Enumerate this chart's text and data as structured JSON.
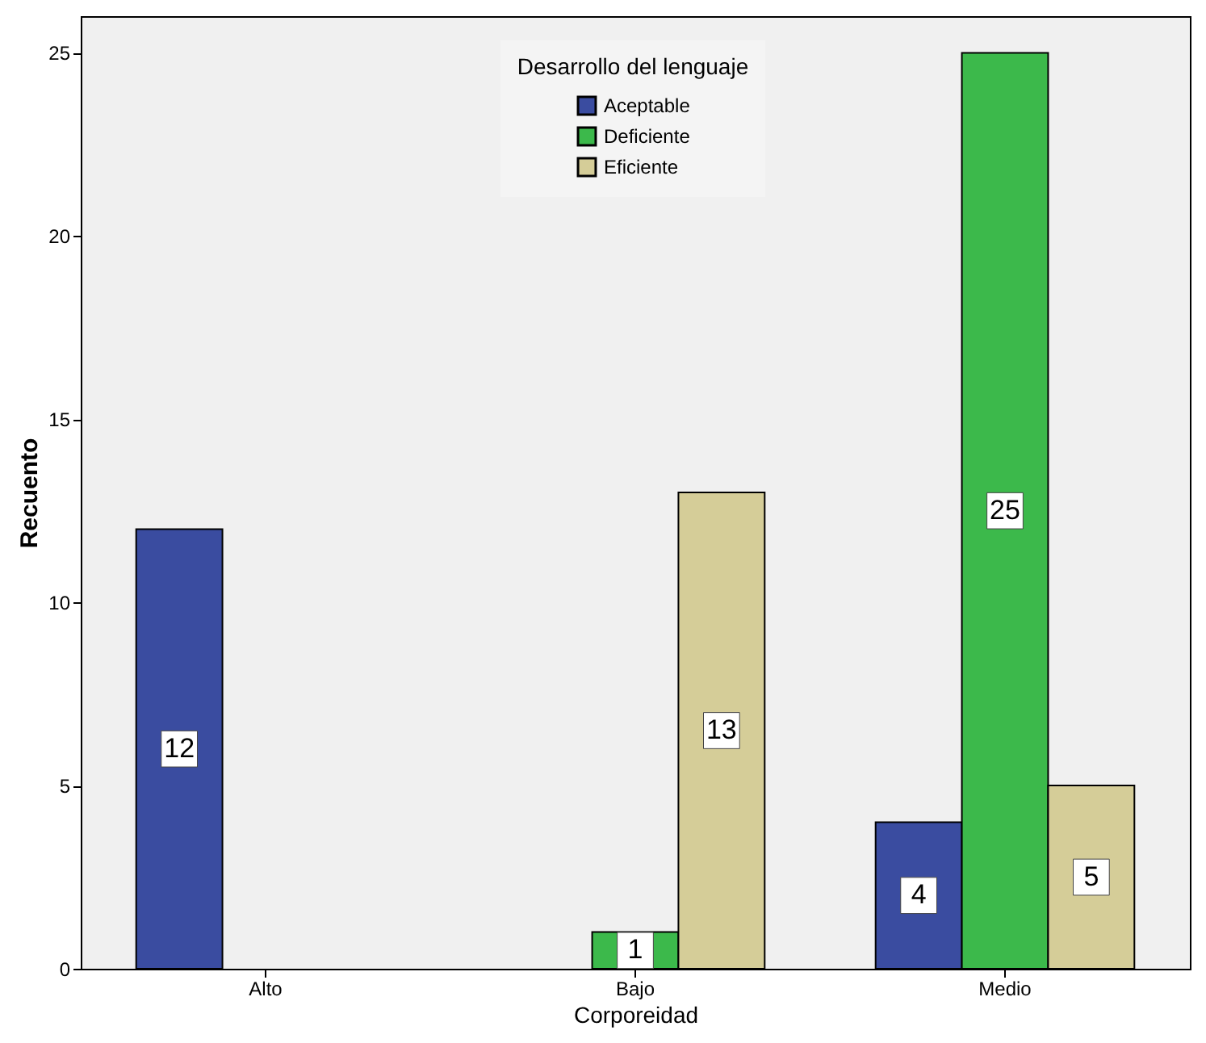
{
  "chart_data": {
    "type": "bar",
    "xlabel": "Corporeidad",
    "ylabel": "Recuento",
    "legend_title": "Desarrollo del lenguaje",
    "categories": [
      "Alto",
      "Bajo",
      "Medio"
    ],
    "series": [
      {
        "name": "Aceptable",
        "color": "#3a4ca0",
        "values": [
          12,
          null,
          4
        ]
      },
      {
        "name": "Deficiente",
        "color": "#3cb94b",
        "values": [
          null,
          1,
          25
        ]
      },
      {
        "name": "Eficiente",
        "color": "#d5cd98",
        "values": [
          null,
          13,
          5
        ]
      }
    ],
    "ylim": [
      0,
      26
    ],
    "yticks": [
      0,
      5,
      10,
      15,
      20,
      25
    ],
    "grid": false,
    "legend": "top",
    "data_labels": true
  }
}
